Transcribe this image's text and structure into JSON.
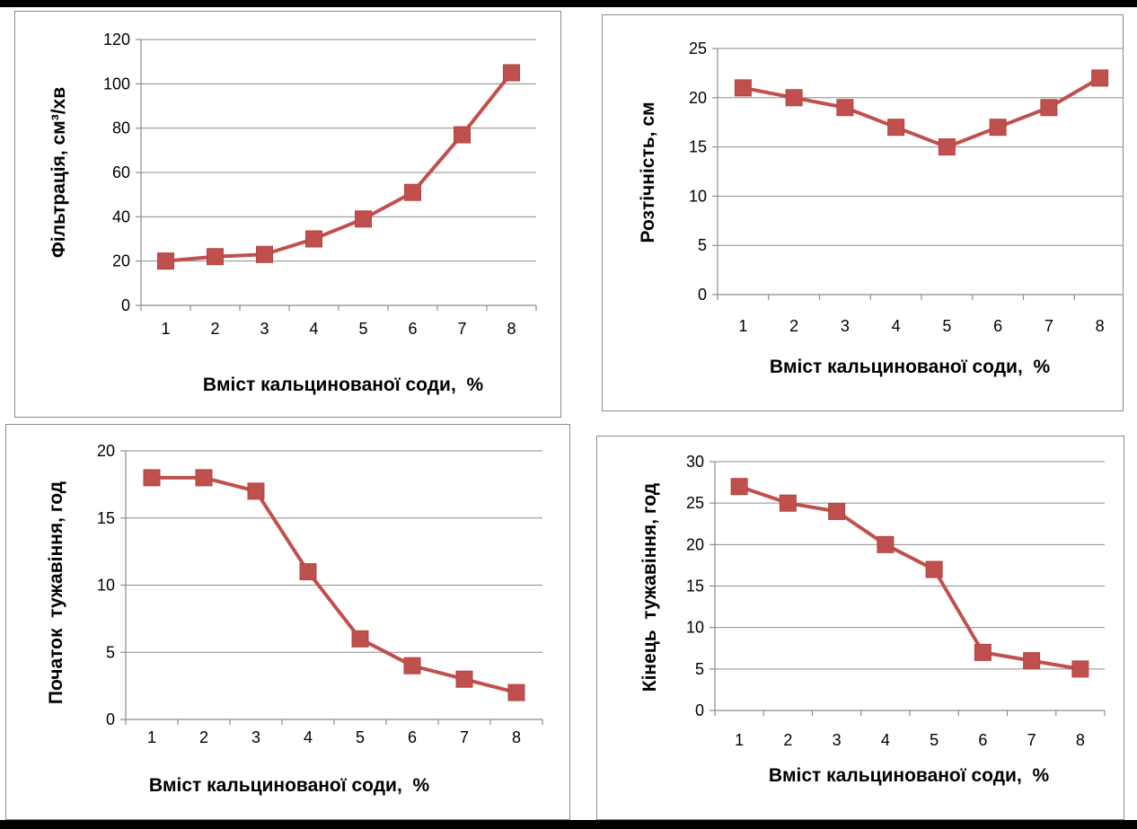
{
  "chart_data": [
    {
      "type": "line",
      "xlabel": "Вміст кальцинованої соди,  %",
      "ylabel": "Фільтрація, см³/хв",
      "categories": [
        "1",
        "2",
        "3",
        "4",
        "5",
        "6",
        "7",
        "8"
      ],
      "yticks": [
        "0",
        "20",
        "40",
        "60",
        "80",
        "100",
        "120"
      ],
      "ylim": [
        0,
        120
      ],
      "series": [
        {
          "values": [
            20,
            22,
            23,
            30,
            39,
            51,
            77,
            105
          ]
        }
      ],
      "color": "#c0504d",
      "grid": true
    },
    {
      "type": "line",
      "xlabel": "Вміст кальцинованої соди,  %",
      "ylabel": "Розтічність, см",
      "categories": [
        "1",
        "2",
        "3",
        "4",
        "5",
        "6",
        "7",
        "8"
      ],
      "yticks": [
        "0",
        "5",
        "10",
        "15",
        "20",
        "25"
      ],
      "ylim": [
        0,
        25
      ],
      "series": [
        {
          "values": [
            21,
            20,
            19,
            17,
            15,
            17,
            19,
            22
          ]
        }
      ],
      "color": "#c0504d",
      "grid": true
    },
    {
      "type": "line",
      "xlabel": "Вміст кальцинованої соди,  %",
      "ylabel": "Початок  тужавіння, год",
      "categories": [
        "1",
        "2",
        "3",
        "4",
        "5",
        "6",
        "7",
        "8"
      ],
      "yticks": [
        "0",
        "5",
        "10",
        "15",
        "20"
      ],
      "ylim": [
        0,
        20
      ],
      "series": [
        {
          "values": [
            18,
            18,
            17,
            11,
            6,
            4,
            3,
            2
          ]
        }
      ],
      "color": "#c0504d",
      "grid": true
    },
    {
      "type": "line",
      "xlabel": "Вміст кальцинованої соди,  %",
      "ylabel": "Кінець  тужавіння, год",
      "categories": [
        "1",
        "2",
        "3",
        "4",
        "5",
        "6",
        "7",
        "8"
      ],
      "yticks": [
        "0",
        "5",
        "10",
        "15",
        "20",
        "25",
        "30"
      ],
      "ylim": [
        0,
        30
      ],
      "series": [
        {
          "values": [
            27,
            25,
            24,
            20,
            17,
            7,
            6,
            5
          ]
        }
      ],
      "color": "#c0504d",
      "grid": true
    }
  ]
}
